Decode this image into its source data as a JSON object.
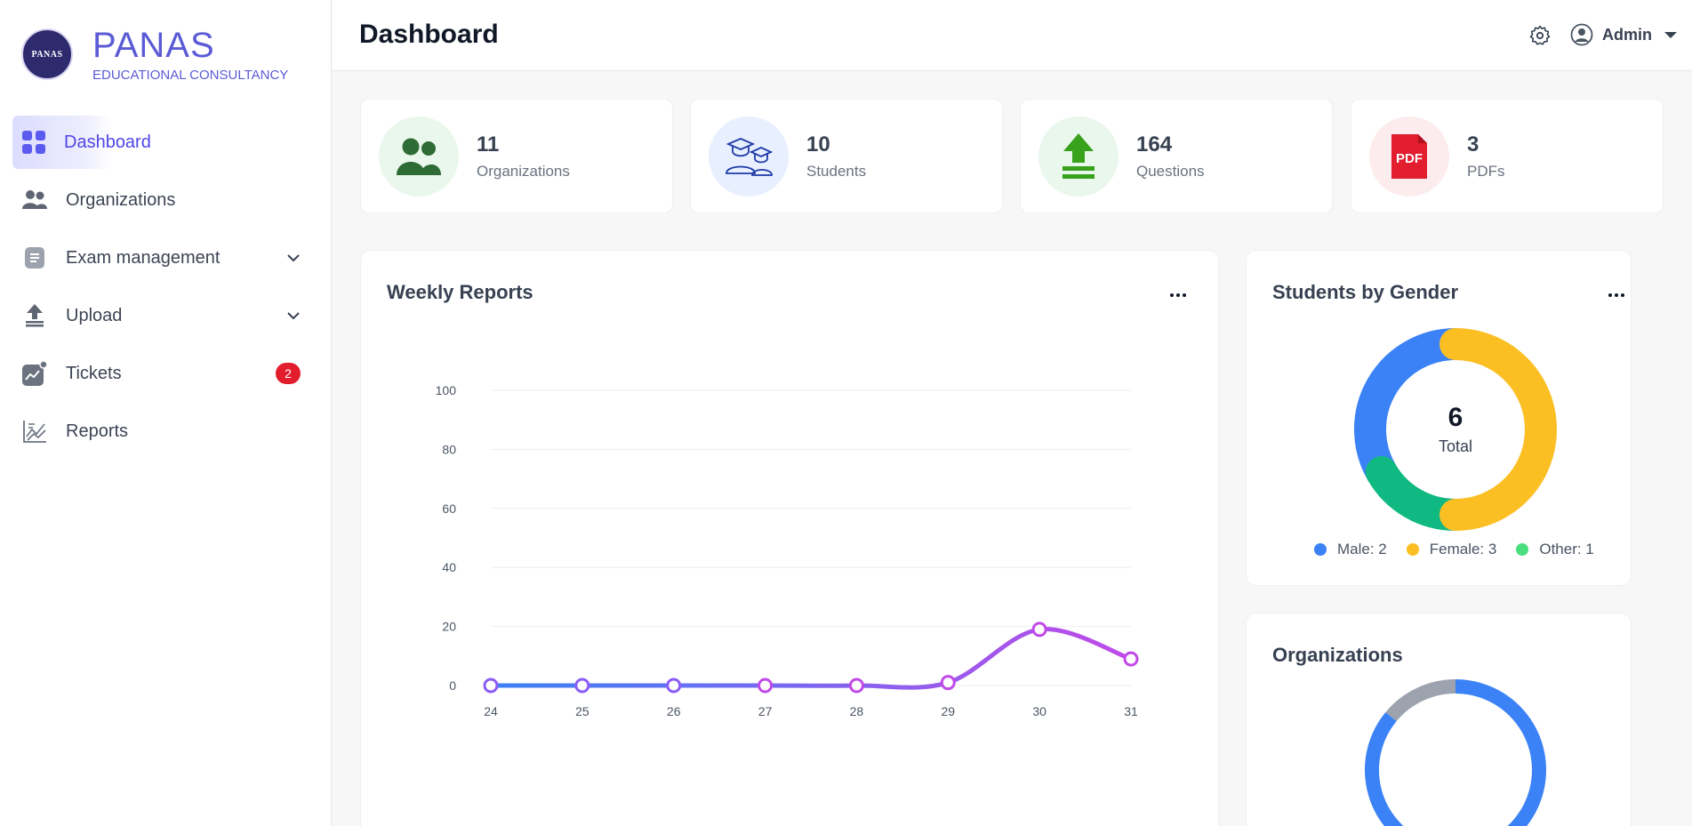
{
  "brand": {
    "logo_text": "PANAS",
    "name": "PANAS",
    "subtitle": "EDUCATIONAL CONSULTANCY"
  },
  "sidebar": {
    "items": [
      {
        "label": "Dashboard",
        "icon": "grid-icon",
        "active": true
      },
      {
        "label": "Organizations",
        "icon": "users-icon"
      },
      {
        "label": "Exam management",
        "icon": "document-icon",
        "expandable": true
      },
      {
        "label": "Upload",
        "icon": "upload-icon",
        "expandable": true
      },
      {
        "label": "Tickets",
        "icon": "chart-notification-icon",
        "badge": "2"
      },
      {
        "label": "Reports",
        "icon": "line-chart-icon"
      }
    ]
  },
  "header": {
    "title": "Dashboard",
    "user": "Admin"
  },
  "stats": [
    {
      "value": "11",
      "label": "Organizations",
      "icon": "users-icon",
      "color": "#2e6b35",
      "bg": "#eaf7ec"
    },
    {
      "value": "10",
      "label": "Students",
      "icon": "graduates-icon",
      "color": "#1e3aa8",
      "bg": "#e8efff"
    },
    {
      "value": "164",
      "label": "Questions",
      "icon": "upload-arrow-icon",
      "color": "#38a21c",
      "bg": "#eaf7ec"
    },
    {
      "value": "3",
      "label": "PDFs",
      "icon": "pdf-icon",
      "color": "#e11d2e",
      "bg": "#fdecee"
    }
  ],
  "weekly": {
    "title": "Weekly Reports",
    "chart_data": {
      "type": "line",
      "categories": [
        "24",
        "25",
        "26",
        "27",
        "28",
        "29",
        "30",
        "31"
      ],
      "series": [
        {
          "values": [
            0,
            0,
            0,
            0,
            0,
            1,
            19,
            9
          ]
        }
      ],
      "ylim": [
        0,
        100
      ],
      "yticks": [
        "0",
        "20",
        "40",
        "60",
        "80",
        "100"
      ],
      "grid": true,
      "colors": {
        "start": "#3b82f6",
        "end": "#c04ae8"
      }
    }
  },
  "gender": {
    "title": "Students by Gender",
    "total": "6",
    "total_label": "Total",
    "chart_data": {
      "type": "pie",
      "categories": [
        "Male",
        "Female",
        "Other"
      ],
      "values": [
        2,
        3,
        1
      ],
      "colors": [
        "#3b82f6",
        "#fbbf24",
        "#10b981"
      ]
    },
    "legend": [
      "Male: 2",
      "Female: 3",
      "Other: 1"
    ],
    "legend_colors": [
      "#3b82f6",
      "#fbbf24",
      "#4ade80"
    ]
  },
  "orgs": {
    "title": "Organizations",
    "chart_data": {
      "type": "pie",
      "values": [
        86,
        14
      ],
      "colors": [
        "#3b82f6",
        "#9ca3af"
      ]
    }
  }
}
